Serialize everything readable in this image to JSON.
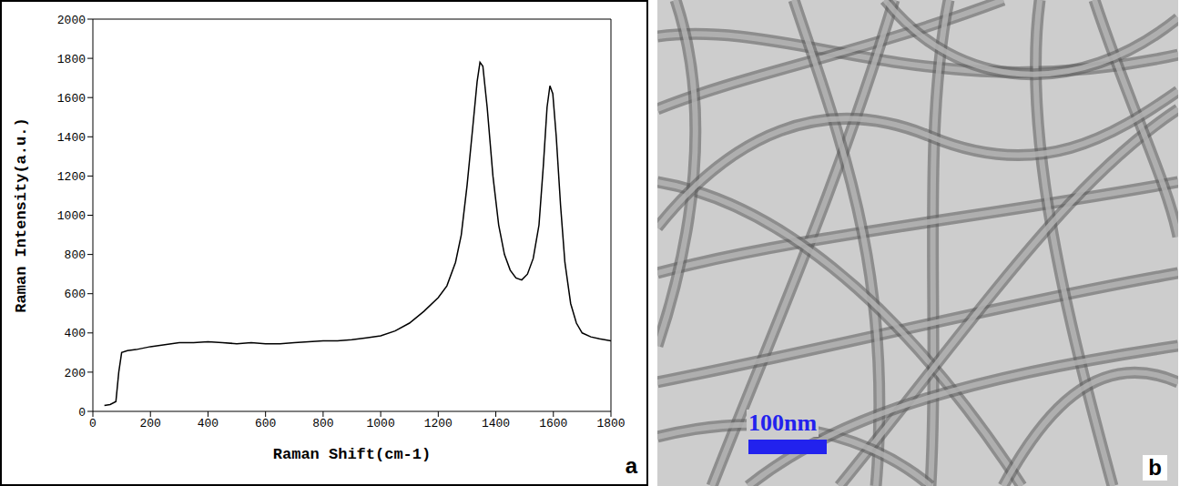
{
  "chart_data": {
    "type": "line",
    "x_label": "Raman Shift(cm-1)",
    "y_label": "Raman Intensity(a.u.)",
    "xlim": [
      0,
      1800
    ],
    "xticks": [
      0,
      200,
      400,
      600,
      800,
      1000,
      1200,
      1400,
      1600,
      1800
    ],
    "ylim": [
      0,
      2000
    ],
    "yticks": [
      0,
      200,
      400,
      600,
      800,
      1000,
      1200,
      1400,
      1600,
      1800,
      2000
    ],
    "grid": false,
    "color": "#000000",
    "x": [
      40,
      60,
      80,
      90,
      100,
      120,
      150,
      200,
      250,
      300,
      350,
      400,
      450,
      500,
      550,
      600,
      650,
      700,
      750,
      800,
      850,
      900,
      950,
      1000,
      1050,
      1100,
      1150,
      1200,
      1230,
      1260,
      1280,
      1300,
      1320,
      1335,
      1345,
      1355,
      1370,
      1390,
      1410,
      1430,
      1450,
      1470,
      1490,
      1510,
      1530,
      1550,
      1565,
      1578,
      1588,
      1598,
      1610,
      1625,
      1640,
      1660,
      1680,
      1700,
      1730,
      1760,
      1800
    ],
    "values": [
      30,
      35,
      50,
      200,
      300,
      310,
      315,
      330,
      340,
      350,
      350,
      355,
      350,
      345,
      350,
      345,
      345,
      350,
      355,
      360,
      360,
      365,
      375,
      385,
      410,
      450,
      510,
      580,
      640,
      760,
      900,
      1150,
      1450,
      1680,
      1780,
      1760,
      1550,
      1200,
      950,
      800,
      720,
      680,
      670,
      700,
      780,
      950,
      1250,
      1550,
      1660,
      1620,
      1400,
      1050,
      760,
      550,
      450,
      400,
      380,
      370,
      360
    ]
  },
  "panels": [
    {
      "label": "a"
    },
    {
      "label": "b",
      "scale_bar": "100nm"
    }
  ]
}
